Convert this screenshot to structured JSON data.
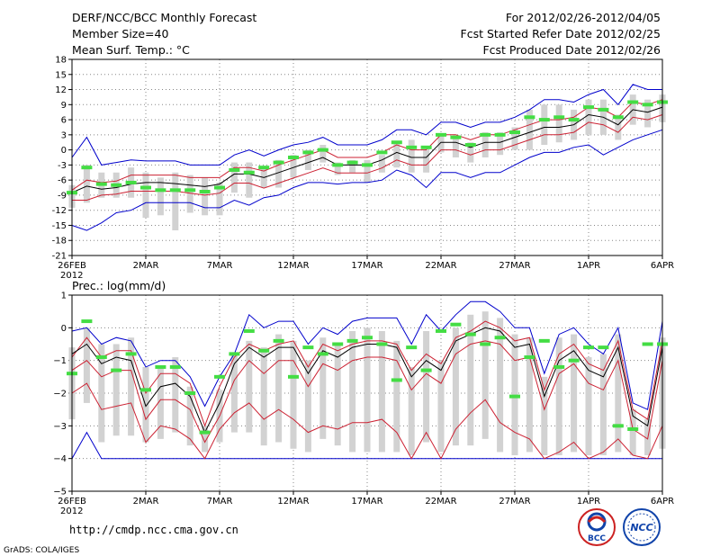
{
  "header": {
    "title": "DERF/NCC/BCC Monthly Forecast",
    "member_size": "Member Size=40",
    "variable": "Mean Surf. Temp.: °C",
    "forecast_period": "For 2012/02/26-2012/04/05",
    "started_date": "Fcst Started Refer Date 2012/02/25",
    "produced_date": "Fcst Produced Date 2012/02/26"
  },
  "footer": {
    "url": "http://cmdp.ncc.cma.gov.cn",
    "credit": "GrADS: COLA/IGES",
    "logo_bcc": "BCC",
    "logo_ncc": "NCC"
  },
  "colors": {
    "mean": "#000000",
    "inner_band": "#cc2233",
    "outer_band": "#0000cc",
    "box": "#d2d2d2",
    "marker": "#44dd44",
    "grid": "#888888"
  },
  "chart_data": [
    {
      "type": "line",
      "ylabel": "Mean Surf. Temp.: °C",
      "ylim": [
        -21,
        18
      ],
      "yticks": [
        "18",
        "15",
        "12",
        "9",
        "6",
        "3",
        "0",
        "-3",
        "-6",
        "-9",
        "-12",
        "-15",
        "-18",
        "-21"
      ],
      "xticks": [
        {
          "day": 0,
          "label": "26FEB",
          "sub": "2012"
        },
        {
          "day": 5,
          "label": "2MAR"
        },
        {
          "day": 10,
          "label": "7MAR"
        },
        {
          "day": 15,
          "label": "12MAR"
        },
        {
          "day": 20,
          "label": "17MAR"
        },
        {
          "day": 25,
          "label": "22MAR"
        },
        {
          "day": 30,
          "label": "27MAR"
        },
        {
          "day": 35,
          "label": "1APR"
        },
        {
          "day": 40,
          "label": "6APR"
        }
      ],
      "series": {
        "mean": [
          -8.5,
          -7.2,
          -7.8,
          -7.5,
          -6.8,
          -6.5,
          -6.5,
          -6.7,
          -7,
          -7.3,
          -6.8,
          -4.8,
          -4.8,
          -5.5,
          -4.5,
          -3.5,
          -2.5,
          -1.5,
          -3,
          -3,
          -3,
          -2,
          -0.5,
          -1.5,
          -1.5,
          1.5,
          1.5,
          0.5,
          1.5,
          1.5,
          2.5,
          3.5,
          4.5,
          4.5,
          5,
          7,
          6.5,
          5,
          8,
          7.5,
          8.5
        ],
        "inner_upper": [
          -8,
          -6,
          -6.5,
          -6.2,
          -5,
          -5,
          -5,
          -5,
          -5.5,
          -5.5,
          -5.5,
          -3.5,
          -3.5,
          -4.2,
          -3,
          -2,
          -1,
          0,
          -1.5,
          -1.5,
          -1.5,
          -0.5,
          1,
          0,
          0,
          3,
          3,
          2,
          3,
          3,
          4,
          5,
          6,
          6,
          6.5,
          8.5,
          8,
          6.5,
          9.5,
          9,
          10
        ],
        "inner_lower": [
          -10,
          -10,
          -9,
          -8.8,
          -8.2,
          -8.2,
          -8.2,
          -8.2,
          -8.6,
          -9,
          -8.6,
          -6.6,
          -6.6,
          -7.6,
          -6.6,
          -5.6,
          -4.6,
          -3.6,
          -4.6,
          -4.6,
          -4.6,
          -3.6,
          -2,
          -3,
          -3,
          0,
          0,
          -1,
          0,
          0,
          1,
          2,
          3,
          3,
          3.5,
          5.5,
          5,
          3.5,
          6.5,
          6,
          7
        ],
        "outer_upper": [
          -1.5,
          2.5,
          -3,
          -2.5,
          -2,
          -2.2,
          -2.2,
          -2.2,
          -3,
          -3,
          -3,
          -1,
          0,
          -1.2,
          0,
          1,
          1.5,
          2.5,
          1,
          1,
          1,
          2,
          4,
          4,
          3,
          5.5,
          5.5,
          4.5,
          5.5,
          5.5,
          6.5,
          8,
          10,
          10,
          9.5,
          11,
          12,
          9,
          13,
          12,
          12
        ],
        "outer_lower": [
          -15,
          -16,
          -14.5,
          -12.5,
          -12,
          -10.5,
          -10.5,
          -10.5,
          -10.5,
          -11.5,
          -11.5,
          -10,
          -11,
          -9.5,
          -9,
          -7.5,
          -6.5,
          -6.5,
          -6.8,
          -6.5,
          -6.5,
          -6,
          -4,
          -5,
          -7.5,
          -4.5,
          -4.5,
          -5.5,
          -4.5,
          -4.5,
          -3,
          -1.5,
          -0.5,
          -0.5,
          0.5,
          1,
          -1,
          0.5,
          2,
          3,
          4
        ],
        "box_top": [
          -7,
          -3,
          -4.5,
          -4.5,
          -3.5,
          -4.5,
          -5.5,
          -4.5,
          -5,
          -5.5,
          -6.5,
          -2.5,
          -2.5,
          -3.5,
          -2,
          -1,
          0,
          1,
          -2.5,
          -2,
          -2,
          -1,
          1.5,
          2,
          0,
          3,
          2.5,
          1.5,
          3.5,
          3.5,
          4.5,
          8,
          9,
          9,
          8,
          10,
          10,
          7,
          11,
          10,
          11
        ],
        "box_bottom": [
          -11.5,
          -10.5,
          -9.5,
          -9.5,
          -9.5,
          -13.5,
          -13,
          -16,
          -12.5,
          -13,
          -13,
          -8.5,
          -9.5,
          -7.5,
          -7.5,
          -5.5,
          -4,
          -2.5,
          -5,
          -4.5,
          -6.5,
          -4.5,
          -3.5,
          -4.5,
          -4.5,
          -0.5,
          -1.5,
          -2.5,
          -1.5,
          -1,
          0,
          0,
          1,
          1.5,
          2,
          3,
          3,
          2,
          5,
          4.5,
          5.5
        ],
        "marker": [
          -8.5,
          -3.5,
          -6.8,
          -7,
          -6.5,
          -7.5,
          -8,
          -8,
          -8,
          -8.3,
          -7.5,
          -4,
          -4.5,
          -3.5,
          -2.5,
          -1.5,
          -0.5,
          0,
          -3,
          -2.5,
          -3,
          -0.5,
          1.5,
          0.5,
          0.5,
          3,
          2.5,
          1,
          3,
          3,
          3.5,
          6.5,
          6,
          6.5,
          6,
          8.5,
          8,
          6.5,
          9.5,
          9,
          9.5
        ]
      }
    },
    {
      "type": "line",
      "ylabel": "Prec.: log(mm/d)",
      "ylim": [
        -5,
        1
      ],
      "yticks": [
        "1",
        "0",
        "−1",
        "−2",
        "−3",
        "−4",
        "−5"
      ],
      "xticks": [
        {
          "day": 0,
          "label": "26FEB",
          "sub": "2012"
        },
        {
          "day": 5,
          "label": "2MAR"
        },
        {
          "day": 10,
          "label": "7MAR"
        },
        {
          "day": 15,
          "label": "12MAR"
        },
        {
          "day": 20,
          "label": "17MAR"
        },
        {
          "day": 25,
          "label": "22MAR"
        },
        {
          "day": 30,
          "label": "27MAR"
        },
        {
          "day": 35,
          "label": "1APR"
        },
        {
          "day": 40,
          "label": "6APR"
        }
      ],
      "series": {
        "mean": [
          -0.8,
          -0.5,
          -1.1,
          -0.9,
          -1,
          -2.4,
          -1.8,
          -1.7,
          -2.1,
          -3.2,
          -2.3,
          -1.1,
          -0.6,
          -0.9,
          -0.6,
          -0.6,
          -1.4,
          -0.7,
          -0.9,
          -0.6,
          -0.5,
          -0.5,
          -0.6,
          -1.5,
          -1,
          -1.3,
          -0.4,
          -0.2,
          0,
          -0.1,
          -0.6,
          -0.5,
          -2.1,
          -1,
          -0.7,
          -1.3,
          -1.5,
          -0.6,
          -2.7,
          -3,
          -0.6
        ],
        "inner_upper": [
          -0.9,
          -0.3,
          -0.9,
          -0.7,
          -0.7,
          -2,
          -1.4,
          -1.4,
          -1.7,
          -3,
          -1.8,
          -0.9,
          -0.5,
          -0.7,
          -0.5,
          -0.4,
          -1.2,
          -0.5,
          -0.7,
          -0.5,
          -0.4,
          -0.4,
          -0.5,
          -1.3,
          -0.8,
          -1.1,
          -0.3,
          -0.1,
          0.2,
          0,
          -0.4,
          -0.3,
          -1.9,
          -0.8,
          -0.5,
          -1.1,
          -1.3,
          -0.4,
          -2.5,
          -2.8,
          -0.4
        ],
        "inner_lower": [
          -1.3,
          -1,
          -1.5,
          -1.3,
          -1.3,
          -2.8,
          -2.2,
          -2.2,
          -2.5,
          -3.5,
          -2.7,
          -1.6,
          -1,
          -1.4,
          -1,
          -1,
          -1.8,
          -1.1,
          -1.3,
          -1,
          -0.9,
          -0.9,
          -1,
          -1.9,
          -1.4,
          -1.7,
          -0.8,
          -0.5,
          -0.4,
          -0.5,
          -1,
          -0.9,
          -2.5,
          -1.4,
          -1.1,
          -1.7,
          -1.9,
          -1,
          -3.1,
          -3.4,
          -1
        ],
        "outer_upper": [
          -0.1,
          0,
          -0.5,
          -0.3,
          -0.4,
          -1.2,
          -1,
          -1,
          -1.5,
          -2.4,
          -1.5,
          -0.8,
          0.4,
          0,
          0.2,
          0.2,
          -0.5,
          0,
          -0.2,
          0.2,
          0.3,
          0.3,
          0.3,
          -0.5,
          0.4,
          -0.1,
          0.4,
          0.8,
          0.8,
          0.5,
          0,
          0,
          -1.4,
          -0.2,
          0,
          -0.5,
          -0.8,
          0,
          -2.3,
          -2.5,
          0.2
        ],
        "outer_lower": [
          -4,
          -3.2,
          -4,
          -4,
          -4,
          -4,
          -4,
          -4,
          -4,
          -4,
          -4,
          -4,
          -4,
          -4,
          -4,
          -4,
          -4,
          -4,
          -4,
          -4,
          -4,
          -4,
          -4,
          -4,
          -4,
          -4,
          -4,
          -4,
          -4,
          -4,
          -4,
          -4,
          -4,
          -4,
          -4,
          -4,
          -4,
          -4,
          -4,
          -4,
          -4
        ],
        "inner_lower_deep": [
          -2,
          -1.7,
          -2.5,
          -2.4,
          -2.3,
          -3.5,
          -3,
          -3.1,
          -3.4,
          -4,
          -3.1,
          -2.6,
          -2.3,
          -2.8,
          -2.5,
          -2.8,
          -3.2,
          -3,
          -3.1,
          -2.9,
          -2.9,
          -2.8,
          -3.2,
          -4,
          -3.2,
          -4,
          -3.1,
          -2.6,
          -2.2,
          -2.9,
          -3.2,
          -3.4,
          -4,
          -3.8,
          -3.5,
          -4,
          -3.8,
          -3.4,
          -3.9,
          -4,
          -3
        ],
        "box_top": [
          -0.6,
          0,
          -0.5,
          -0.5,
          -0.3,
          -1.2,
          -1.2,
          -0.9,
          -1.8,
          -3,
          -1.9,
          -0.8,
          -0.4,
          -0.6,
          -0.2,
          -0.4,
          -1,
          -0.3,
          -0.5,
          -0.1,
          0,
          -0.1,
          -0.4,
          -1.2,
          -0.1,
          -1,
          0,
          0.4,
          0.5,
          0.3,
          -0.2,
          -0.3,
          -1.5,
          -0.3,
          -0.2,
          -0.9,
          -0.8,
          -0.2,
          -2.5,
          -2.8,
          -0.3
        ],
        "box_bottom": [
          -2.8,
          -2.3,
          -3.5,
          -3.3,
          -3.3,
          -3.5,
          -3.4,
          -3.2,
          -3.6,
          -3.8,
          -3.5,
          -3.2,
          -3.2,
          -3.6,
          -3.5,
          -3.7,
          -3.8,
          -3.4,
          -3.6,
          -3.8,
          -3.8,
          -3.8,
          -3.8,
          -3.9,
          -3.5,
          -3.8,
          -3.6,
          -3.6,
          -3.4,
          -3.8,
          -3.9,
          -3.8,
          -3.9,
          -3.9,
          -3.8,
          -3.9,
          -3.9,
          -3.8,
          -3.9,
          -3.9,
          -3.7
        ],
        "marker": [
          -1.4,
          0.2,
          -0.9,
          -1.3,
          -0.8,
          -1.9,
          -1.2,
          -1.2,
          -2,
          -3.2,
          -1.5,
          -0.8,
          -0.1,
          -0.7,
          -0.4,
          -1.5,
          -0.6,
          -0.8,
          -0.5,
          -0.4,
          -0.3,
          -0.5,
          -1.6,
          -0.6,
          -1.3,
          -0.1,
          0.1,
          -0.2,
          -0.5,
          -0.3,
          -2.1,
          -0.9,
          -0.4,
          -1.2,
          -1,
          -0.6,
          -0.6,
          -3,
          -3.1,
          -0.5,
          -0.5
        ]
      }
    }
  ]
}
